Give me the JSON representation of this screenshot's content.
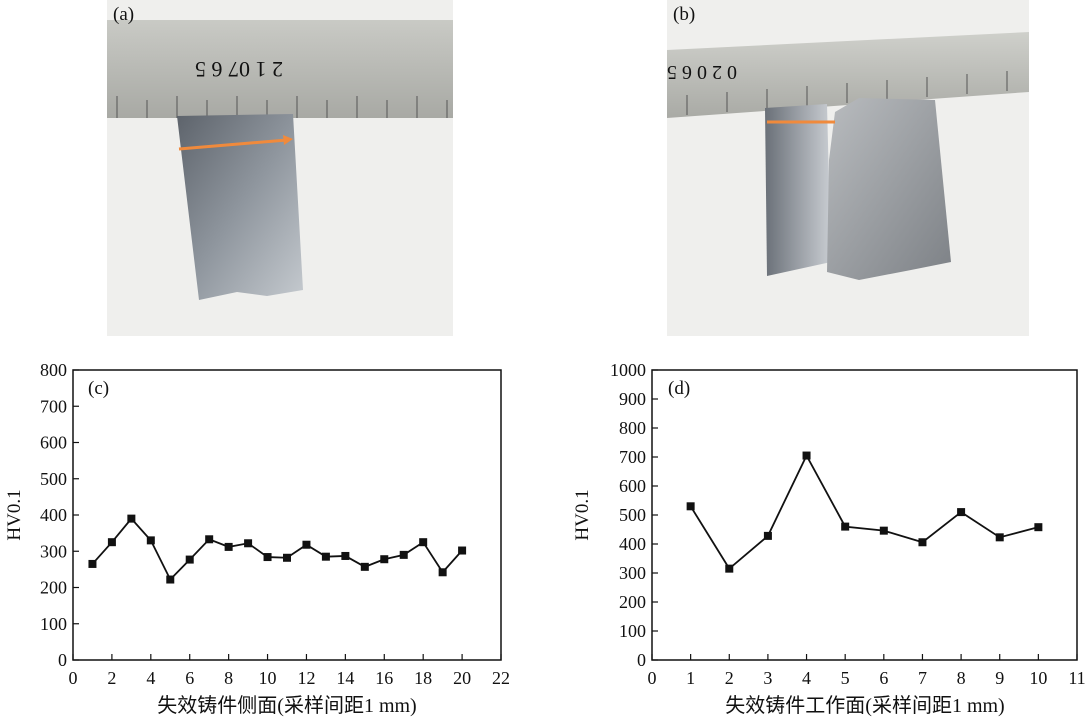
{
  "panels": {
    "a_label": "(a)",
    "b_label": "(b)",
    "c_label": "(c)",
    "d_label": "(d)"
  },
  "ruler_marks": {
    "a": "2   1   07   6   5",
    "b": "0   2   0   6   5"
  },
  "colors": {
    "arrow": "#f08a3c",
    "line": "#111111",
    "ruler": "#b8b9b4",
    "metal": "#8a9098"
  },
  "chart_data": [
    {
      "type": "line",
      "title": "",
      "xlabel": "失效铸件侧面(采样间距1 mm)",
      "ylabel": "HV0.1",
      "xlim": [
        0,
        22
      ],
      "ylim": [
        0,
        800
      ],
      "xticks": [
        0,
        2,
        4,
        6,
        8,
        10,
        12,
        14,
        16,
        18,
        20,
        22
      ],
      "yticks": [
        0,
        100,
        200,
        300,
        400,
        500,
        600,
        700,
        800
      ],
      "x": [
        1,
        2,
        3,
        4,
        5,
        6,
        7,
        8,
        9,
        10,
        11,
        12,
        13,
        14,
        15,
        16,
        17,
        18,
        19,
        20
      ],
      "values": [
        265,
        325,
        390,
        330,
        222,
        277,
        333,
        312,
        322,
        284,
        282,
        318,
        285,
        287,
        257,
        278,
        290,
        325,
        242,
        302
      ]
    },
    {
      "type": "line",
      "title": "",
      "xlabel": "失效铸件工作面(采样间距1 mm)",
      "ylabel": "HV0.1",
      "xlim": [
        0,
        11
      ],
      "ylim": [
        0,
        1000
      ],
      "xticks": [
        0,
        1,
        2,
        3,
        4,
        5,
        6,
        7,
        8,
        9,
        10,
        11
      ],
      "yticks": [
        0,
        100,
        200,
        300,
        400,
        500,
        600,
        700,
        800,
        900,
        1000
      ],
      "x": [
        1,
        2,
        3,
        4,
        5,
        6,
        7,
        8,
        9,
        10
      ],
      "values": [
        530,
        315,
        428,
        705,
        460,
        446,
        406,
        510,
        423,
        458
      ]
    }
  ]
}
